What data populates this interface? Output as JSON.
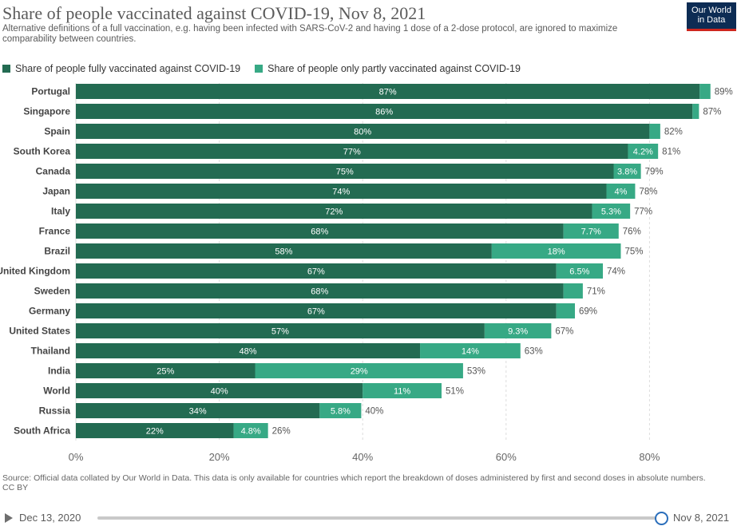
{
  "header": {
    "title": "Share of people vaccinated against COVID-19, Nov 8, 2021",
    "subtitle": "Alternative definitions of a full vaccination, e.g. having been infected with SARS-CoV-2 and having 1 dose of a 2-dose protocol, are ignored to maximize comparability between countries.",
    "logo_line1": "Our World",
    "logo_line2": "in Data"
  },
  "colors": {
    "full": "#236b52",
    "partial": "#37a985",
    "logo_bg": "#0d2c54",
    "logo_accent": "#ce261e",
    "grid": "#dddddd"
  },
  "chart_data": {
    "type": "bar",
    "orientation": "horizontal",
    "stacked": true,
    "categories": [
      "Portugal",
      "Singapore",
      "Spain",
      "South Korea",
      "Canada",
      "Japan",
      "Italy",
      "France",
      "Brazil",
      "United Kingdom",
      "Sweden",
      "Germany",
      "United States",
      "Thailand",
      "India",
      "World",
      "Russia",
      "South Africa"
    ],
    "series": [
      {
        "name": "Share of people fully vaccinated against COVID-19",
        "values": [
          87,
          86,
          80,
          77,
          75,
          74,
          72,
          68,
          58,
          67,
          68,
          67,
          57,
          48,
          25,
          40,
          34,
          22
        ],
        "labels": [
          "87%",
          "86%",
          "80%",
          "77%",
          "75%",
          "74%",
          "72%",
          "68%",
          "58%",
          "67%",
          "68%",
          "67%",
          "57%",
          "48%",
          "25%",
          "40%",
          "34%",
          "22%"
        ]
      },
      {
        "name": "Share of people only partly vaccinated against COVID-19",
        "values": [
          1.5,
          0.9,
          1.5,
          4.2,
          3.8,
          4,
          5.3,
          7.7,
          18,
          6.5,
          2.7,
          2.6,
          9.3,
          14,
          29,
          11,
          5.8,
          4.8
        ],
        "labels": [
          "",
          "",
          "",
          "4.2%",
          "3.8%",
          "4%",
          "5.3%",
          "7.7%",
          "18%",
          "6.5%",
          "",
          "",
          "9.3%",
          "14%",
          "29%",
          "11%",
          "5.8%",
          "4.8%"
        ]
      }
    ],
    "total_labels": [
      "89%",
      "87%",
      "82%",
      "81%",
      "79%",
      "78%",
      "77%",
      "76%",
      "75%",
      "74%",
      "71%",
      "69%",
      "67%",
      "63%",
      "53%",
      "51%",
      "40%",
      "26%"
    ],
    "x_ticks": [
      0,
      20,
      40,
      60,
      80
    ],
    "x_tick_labels": [
      "0%",
      "20%",
      "40%",
      "60%",
      "80%"
    ],
    "xlim": [
      0,
      89
    ],
    "grid": true,
    "legend_position": "top-left"
  },
  "footer": {
    "source": "Source: Official data collated by Our World in Data. This data is only available for countries which report the breakdown of doses administered by first and second doses in absolute numbers.",
    "license": "CC BY"
  },
  "timeline": {
    "start_label": "Dec 13, 2020",
    "end_label": "Nov 8, 2021",
    "position": 1
  }
}
